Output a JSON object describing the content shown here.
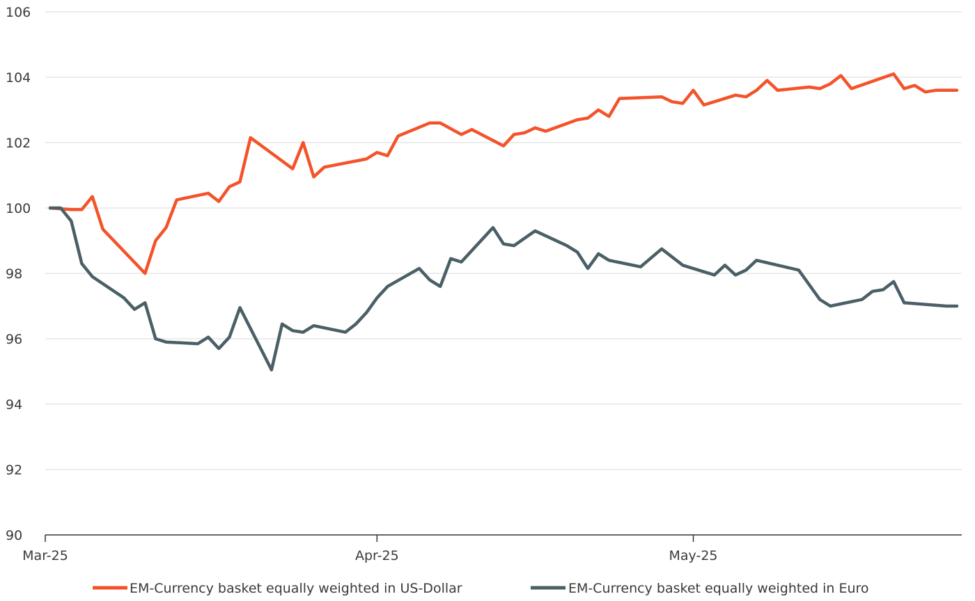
{
  "chart_data": {
    "type": "line",
    "title": "",
    "xlabel": "",
    "ylabel": "",
    "ylim": [
      90,
      106
    ],
    "yticks": [
      90,
      92,
      94,
      96,
      98,
      100,
      102,
      104,
      106
    ],
    "ytick_labels": [
      "90",
      "92",
      "94",
      "96",
      "98",
      "100",
      "102",
      "104",
      "106"
    ],
    "xlim": [
      "2025-03-01",
      "2025-05-26"
    ],
    "xticks": [
      {
        "date": "2025-03-01",
        "label": "Mar-25"
      },
      {
        "date": "2025-04-01",
        "label": "Apr-25"
      },
      {
        "date": "2025-05-01",
        "label": "May-25"
      }
    ],
    "grid": "horizontal",
    "legend_position": "bottom",
    "series": [
      {
        "name": "EM-Currency basket equally weighted in US-Dollar",
        "color": "#f4532a",
        "points": [
          [
            "2025-03-01",
            100.0
          ],
          [
            "2025-03-03",
            99.95
          ],
          [
            "2025-03-04",
            99.95
          ],
          [
            "2025-03-05",
            100.35
          ],
          [
            "2025-03-06",
            99.35
          ],
          [
            "2025-03-10",
            98.0
          ],
          [
            "2025-03-11",
            99.0
          ],
          [
            "2025-03-12",
            99.4
          ],
          [
            "2025-03-13",
            100.25
          ],
          [
            "2025-03-16",
            100.45
          ],
          [
            "2025-03-17",
            100.2
          ],
          [
            "2025-03-18",
            100.65
          ],
          [
            "2025-03-19",
            100.8
          ],
          [
            "2025-03-20",
            102.15
          ],
          [
            "2025-03-24",
            101.2
          ],
          [
            "2025-03-25",
            102.0
          ],
          [
            "2025-03-26",
            100.95
          ],
          [
            "2025-03-27",
            101.25
          ],
          [
            "2025-03-31",
            101.5
          ],
          [
            "2025-04-01",
            101.7
          ],
          [
            "2025-04-02",
            101.6
          ],
          [
            "2025-04-03",
            102.2
          ],
          [
            "2025-04-06",
            102.6
          ],
          [
            "2025-04-07",
            102.6
          ],
          [
            "2025-04-09",
            102.25
          ],
          [
            "2025-04-10",
            102.4
          ],
          [
            "2025-04-13",
            101.9
          ],
          [
            "2025-04-14",
            102.25
          ],
          [
            "2025-04-15",
            102.3
          ],
          [
            "2025-04-16",
            102.45
          ],
          [
            "2025-04-17",
            102.35
          ],
          [
            "2025-04-20",
            102.7
          ],
          [
            "2025-04-21",
            102.75
          ],
          [
            "2025-04-22",
            103.0
          ],
          [
            "2025-04-23",
            102.8
          ],
          [
            "2025-04-24",
            103.35
          ],
          [
            "2025-04-28",
            103.4
          ],
          [
            "2025-04-29",
            103.25
          ],
          [
            "2025-04-30",
            103.2
          ],
          [
            "2025-05-01",
            103.6
          ],
          [
            "2025-05-02",
            103.15
          ],
          [
            "2025-05-05",
            103.45
          ],
          [
            "2025-05-06",
            103.4
          ],
          [
            "2025-05-07",
            103.6
          ],
          [
            "2025-05-08",
            103.9
          ],
          [
            "2025-05-09",
            103.6
          ],
          [
            "2025-05-12",
            103.7
          ],
          [
            "2025-05-13",
            103.65
          ],
          [
            "2025-05-14",
            103.8
          ],
          [
            "2025-05-15",
            104.05
          ],
          [
            "2025-05-16",
            103.65
          ],
          [
            "2025-05-20",
            104.1
          ],
          [
            "2025-05-21",
            103.65
          ],
          [
            "2025-05-22",
            103.75
          ],
          [
            "2025-05-23",
            103.55
          ],
          [
            "2025-05-24",
            103.6
          ],
          [
            "2025-05-26",
            103.6
          ]
        ]
      },
      {
        "name": "EM-Currency basket equally weighted in Euro",
        "color": "#4a5f66",
        "points": [
          [
            "2025-03-01",
            100.0
          ],
          [
            "2025-03-02",
            100.0
          ],
          [
            "2025-03-03",
            99.6
          ],
          [
            "2025-03-04",
            98.3
          ],
          [
            "2025-03-05",
            97.9
          ],
          [
            "2025-03-08",
            97.25
          ],
          [
            "2025-03-09",
            96.9
          ],
          [
            "2025-03-10",
            97.1
          ],
          [
            "2025-03-11",
            96.0
          ],
          [
            "2025-03-12",
            95.9
          ],
          [
            "2025-03-15",
            95.85
          ],
          [
            "2025-03-16",
            96.05
          ],
          [
            "2025-03-17",
            95.7
          ],
          [
            "2025-03-18",
            96.05
          ],
          [
            "2025-03-19",
            96.95
          ],
          [
            "2025-03-22",
            95.05
          ],
          [
            "2025-03-23",
            96.45
          ],
          [
            "2025-03-24",
            96.25
          ],
          [
            "2025-03-25",
            96.2
          ],
          [
            "2025-03-26",
            96.4
          ],
          [
            "2025-03-29",
            96.2
          ],
          [
            "2025-03-30",
            96.45
          ],
          [
            "2025-03-31",
            96.8
          ],
          [
            "2025-04-01",
            97.25
          ],
          [
            "2025-04-02",
            97.6
          ],
          [
            "2025-04-05",
            98.15
          ],
          [
            "2025-04-06",
            97.8
          ],
          [
            "2025-04-07",
            97.6
          ],
          [
            "2025-04-08",
            98.45
          ],
          [
            "2025-04-09",
            98.35
          ],
          [
            "2025-04-12",
            99.4
          ],
          [
            "2025-04-13",
            98.9
          ],
          [
            "2025-04-14",
            98.85
          ],
          [
            "2025-04-16",
            99.3
          ],
          [
            "2025-04-19",
            98.85
          ],
          [
            "2025-04-20",
            98.65
          ],
          [
            "2025-04-21",
            98.15
          ],
          [
            "2025-04-22",
            98.6
          ],
          [
            "2025-04-23",
            98.4
          ],
          [
            "2025-04-26",
            98.2
          ],
          [
            "2025-04-28",
            98.75
          ],
          [
            "2025-04-30",
            98.25
          ],
          [
            "2025-05-03",
            97.95
          ],
          [
            "2025-05-04",
            98.25
          ],
          [
            "2025-05-05",
            97.95
          ],
          [
            "2025-05-06",
            98.1
          ],
          [
            "2025-05-07",
            98.4
          ],
          [
            "2025-05-11",
            98.1
          ],
          [
            "2025-05-13",
            97.2
          ],
          [
            "2025-05-14",
            97.0
          ],
          [
            "2025-05-17",
            97.2
          ],
          [
            "2025-05-18",
            97.45
          ],
          [
            "2025-05-19",
            97.5
          ],
          [
            "2025-05-20",
            97.75
          ],
          [
            "2025-05-21",
            97.1
          ],
          [
            "2025-05-25",
            97.0
          ],
          [
            "2025-05-26",
            97.0
          ]
        ]
      }
    ]
  }
}
